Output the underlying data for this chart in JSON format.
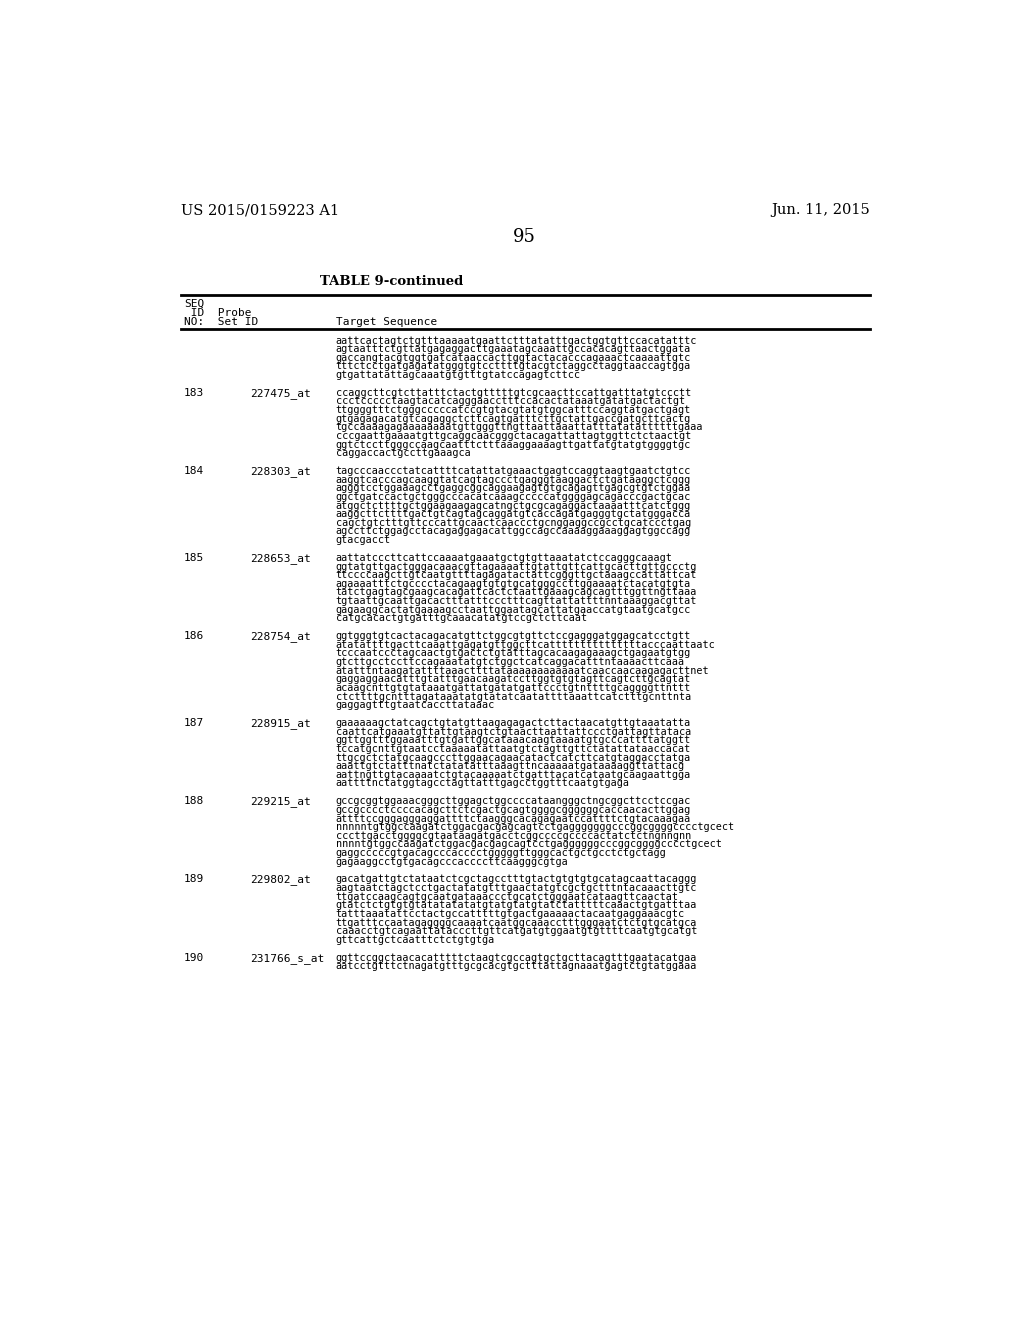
{
  "background_color": "#ffffff",
  "header_left": "US 2015/0159223 A1",
  "header_right": "Jun. 11, 2015",
  "page_number": "95",
  "table_title": "TABLE 9-continued",
  "rows": [
    {
      "seq_id": "",
      "probe_set": "",
      "sequence": "aattcactagtctgtttaaaaatgaattctttatatttgactggtgttccacatatttc\nagtaatttctgttatgagaggacttgaaatagcaaattgccacacagttaactggata\ngaccangtacgtggtgatcataaccacttggtactacacccagaaactcaaaattgtc\ntttctcctgatgagatatgggtgtccttttgtacgtctaggcctaggtaaccagtgga\ngtgattatattagcaaatgtgtttgtatccagagtcttcc"
    },
    {
      "seq_id": "183",
      "probe_set": "227475_at",
      "sequence": "ccaggcttcgtcttatttctactgtttttgtcgcaacttccattgatttatgtccctt\nccctccccctaagtacatcagggaacctttccacactataaatgatatgactactgt\nttggggtttctgggcccccatccgtgtacgtatgtggcatttccaggtatgactgagt\ngtgagagacatgtcagaggctcttcagtgatttcttgctattgaccgatgcttcactg\ntgccaaaagagaaaaaaaatgttgggttngttaattaaattatttatatattttttgaaa\ncccgaattgaaaatgttgcaggcaacgggctacagattattagtggttctctaactgt\nggtctccttgggccaagcaatttctttaaaggaaaagttgattatgtatgtggggtgc\ncaggaccactgccttgaaagca"
    },
    {
      "seq_id": "184",
      "probe_set": "228303_at",
      "sequence": "tagcccaaccctatcattttcatattatgaaactgagtccaggtaagtgaatctgtcc\naaggtcacccagcaaggtatcagtagccctgagggtaaggactctgataaggctcggg\nagggtcctggaaagcctgaggcggcaggaagagtgtgcagagttgagcgtgtctggaa\nggctgatccactgctgggcccacatcaaagcccccatggggagcagacccgactgcac\natggctcttttgctggaagaagagcatngctgcgcagaggactaaaatttcatctggg\naaggcttcttttgactgtcagtagcaggatgtcaccagatgagggtgctatgggacca\ncagctgtctttgttcccattgcaactcaaccctgcnggaggccgcctgcatccctgag\nagccttctggagcctacagaggagacattggccagccaaaaggaaaggagtggccagg\ngtacgacct"
    },
    {
      "seq_id": "185",
      "probe_set": "228653_at",
      "sequence": "aattatcccttcattccaaaatgaaatgctgtgttaaatatctccagggcaaagt\nggtatgttgactgggacaaacgttagaaaattgtattgttcattgcacttgttgccctg\nttccccaagcttgtcaatgttttagagatactattcgggttgctaaagccattattcat\nagaaaatttctgcccctacagaagtgtgtgcatgggccttggaaaatctacatgtgta\ntatctgagtagcgaagcacagattcactctaattgaaagcagcagtttggttngttaaa\ntgtaattgcaattgacactttatttccctttcagttattattttnntaaaggacgttat\ngagaaggcactatgaaaagcctaattggaatagcattatgaaccatgtaatgcatgcc\ncatgcacactgtgatttgcaaacatatgtccgctcttcaat"
    },
    {
      "seq_id": "186",
      "probe_set": "228754_at",
      "sequence": "ggtgggtgtcactacagacatgttctggcgtgttctccgagggatggagcatcctgtt\natatattttgacttcaaattgagatgttggcttcatttttttttttttttacccaattaatc\ntcccaatccctagcaactgtgactctgtatttagcacaagagaaagctgagaatgtgg\ngtcttgcctccttccagaaatatgtctggctcatcaggacatttntaaaacttcaaa\natatttntaagatattttaaacttttataaaaaaaaaaaatcaaccaacaagagacttnet\ngaggaggaacatttgtatttgaacaagatccttggtgtgtagttcagtcttgcagtat\nacaagcnttgtgtataaatgattatgatatgattccctgtnttttgcaggggttnttt\nctcttttgcntttagataaatatgtatatcaatattttaaattcatctttgcnttnta\ngaggagtttgtaatcaccttataaac"
    },
    {
      "seq_id": "187",
      "probe_set": "228915_at",
      "sequence": "gaaaaaagctatcagctgtatgttaagagagactcttactaacatgttgtaaatatta\ncaattcatgaaatgttattgtaagtctgtaacttaattattccctgattagttataca\nggttggtttggaaatttgtgattggcataaacaagtaaaatgtgcccattttatggtt\ntccatgcnttgtaatcctaaaaatattaatgtctagttgttctatattataaccacat\nttgcgctctatgcaagcccttggaacagaacatactcatcttcatgtaggacctatga\naaattgtctatttnatctatatatttaaagttncaaaaatgataaaaggttattacg\naattngttgtacaaaatctgtacaaaaatctgatttacatcataatgcaagaattgga\naattttnctatggtagcctagttatttgagcctggtttcaatgtgaga"
    },
    {
      "seq_id": "188",
      "probe_set": "229215_at",
      "sequence": "gccgcggtggaaacgggcttggagctggccccataangggctngcggcttcctccgac\ngccgcccctccccacagcttctcgactgcagtggggcggggggcaccaacacttggag\nattttccgggagggaggattttctaagggcacagagaatccattttctgtacaaagaa\nnnnnntgtggccaagatctggacgacgagcagtcctgagggggggcccggcggggcccctgcect\ncccttgacctggggcgtaataagatgacctcggccccgccccactatctctngnngnn\nnnnntgtggccaagatctggacgacgagcagtcctgaggggggcccggcggggcccctgcect\ngaggcccccgtgacagcccacccctgggggttgggcactgctgcctctgctagg\ngagaaggcctgtgacagcccaccccttcaagggcgtga"
    },
    {
      "seq_id": "189",
      "probe_set": "229802_at",
      "sequence": "gacatgattgtctataatctcgctagcctttgtactgtgtgtgcatagcaattacaggg\naagtaatctagctcctgactatatgtttgaactatgtcgctgctttntacaaacttgtc\nttgatccaagcagtgcaatgataaaccctgcatctgggaatcataagttcaactat\ngtatctctgtgtgtatatatatatgtatgtatgtatctatttttcaaactgtgatttaa\ntatttaaatattcctactgccatttttgtgactgaaaaactacaatgaggaaacgtc\nttgatttccaatagaggggcaaaatcaatggcaaacctttgggaatctctgtgcatgca\ncaaacctgtcagaattatacccttgttcatgatgtggaatgtgttttcaatgtgcatgt\ngttcattgctcaatttctctgtgtga"
    },
    {
      "seq_id": "190",
      "probe_set": "231766_s_at",
      "sequence": "ggttccggctaacacatttttctaagtcgccagtgctgcttacagtttgaatacatgaa\naatcctgtttctnagatgtttgcgcacgtgctttattagnaaatgagtctgtatggaaa"
    }
  ]
}
